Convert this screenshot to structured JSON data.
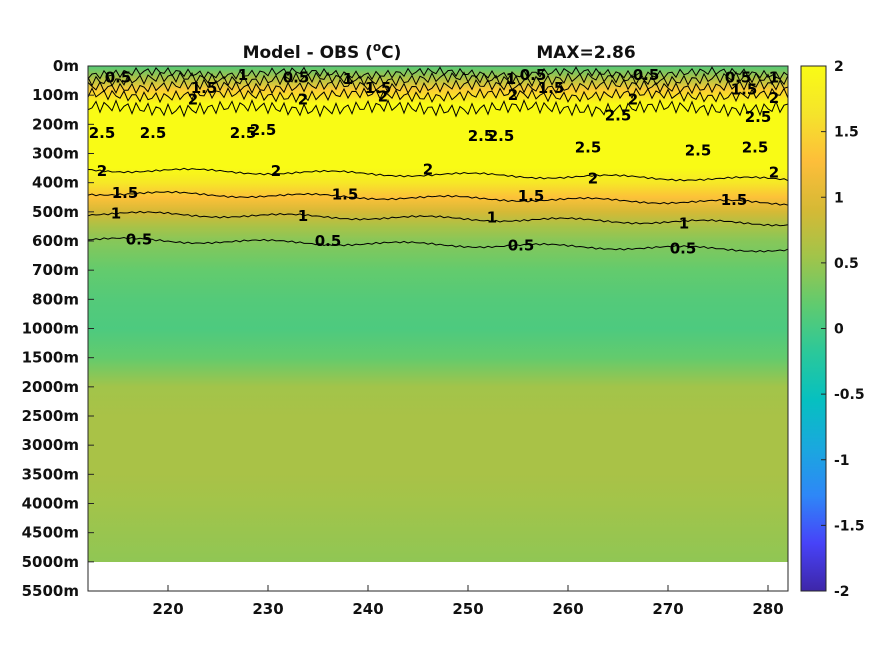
{
  "chart_data": {
    "type": "heatmap",
    "title": "Model - OBS (",
    "title_superscript": "o",
    "title_unit": "C)",
    "annotation": "MAX=2.86",
    "x_ticks": [
      "220",
      "230",
      "240",
      "250",
      "260",
      "270",
      "280"
    ],
    "x_tick_values": [
      220,
      230,
      240,
      250,
      260,
      270,
      280
    ],
    "xlim": [
      212,
      282
    ],
    "y_ticks": [
      "0m",
      "100m",
      "200m",
      "300m",
      "400m",
      "500m",
      "600m",
      "700m",
      "800m",
      "1000m",
      "1500m",
      "2000m",
      "2500m",
      "3000m",
      "3500m",
      "4000m",
      "4500m",
      "5000m",
      "5500m"
    ],
    "data_depth_max": "5000m",
    "colorbar": {
      "ticks": [
        "2",
        "1.5",
        "1",
        "0.5",
        "0",
        "-0.5",
        "-1",
        "-1.5",
        "-2"
      ],
      "values": [
        2,
        1.5,
        1,
        0.5,
        0,
        -0.5,
        -1,
        -1.5,
        -2
      ],
      "clim": [
        -2,
        2
      ],
      "colormap": "parula",
      "stops": [
        "#3e26a8",
        "#4743f8",
        "#2e87f7",
        "#1aa8de",
        "#06c0c0",
        "#2bc89a",
        "#60cb6f",
        "#a1c44a",
        "#d6b935",
        "#fdbe3a",
        "#f5e42b",
        "#f9fb15"
      ]
    },
    "depth_profile": [
      {
        "depth_index": 0,
        "value": 0.1
      },
      {
        "depth_index": 0.4,
        "value": 0.6
      },
      {
        "depth_index": 0.8,
        "value": 1.4
      },
      {
        "depth_index": 1.3,
        "value": 2.3
      },
      {
        "depth_index": 2,
        "value": 2.7
      },
      {
        "depth_index": 2.9,
        "value": 2.6
      },
      {
        "depth_index": 3.5,
        "value": 2.0
      },
      {
        "depth_index": 4,
        "value": 1.7
      },
      {
        "depth_index": 4.5,
        "value": 1.3
      },
      {
        "depth_index": 5,
        "value": 0.9
      },
      {
        "depth_index": 5.5,
        "value": 0.6
      },
      {
        "depth_index": 6,
        "value": 0.4
      },
      {
        "depth_index": 7,
        "value": 0.2
      },
      {
        "depth_index": 8,
        "value": 0.1
      },
      {
        "depth_index": 9,
        "value": 0.05
      },
      {
        "depth_index": 10,
        "value": 0.2
      },
      {
        "depth_index": 11,
        "value": 0.55
      },
      {
        "depth_index": 12,
        "value": 0.6
      },
      {
        "depth_index": 13,
        "value": 0.6
      },
      {
        "depth_index": 14,
        "value": 0.6
      },
      {
        "depth_index": 15,
        "value": 0.55
      },
      {
        "depth_index": 16,
        "value": 0.5
      },
      {
        "depth_index": 17,
        "value": 0.45
      }
    ],
    "contour_labels": [
      {
        "text": "0.5",
        "x": 215,
        "depth_index": 0.4
      },
      {
        "text": "1",
        "x": 227.5,
        "depth_index": 0.3
      },
      {
        "text": "1.5",
        "x": 223.6,
        "depth_index": 0.75
      },
      {
        "text": "2",
        "x": 222.5,
        "depth_index": 1.15
      },
      {
        "text": "0.5",
        "x": 232.8,
        "depth_index": 0.4
      },
      {
        "text": "1",
        "x": 238,
        "depth_index": 0.45
      },
      {
        "text": "1.5",
        "x": 241,
        "depth_index": 0.75
      },
      {
        "text": "2",
        "x": 241.5,
        "depth_index": 1.05
      },
      {
        "text": "2",
        "x": 233.5,
        "depth_index": 1.15
      },
      {
        "text": "1",
        "x": 254.3,
        "depth_index": 0.45
      },
      {
        "text": "0.5",
        "x": 256.5,
        "depth_index": 0.3
      },
      {
        "text": "1.5",
        "x": 258.3,
        "depth_index": 0.75
      },
      {
        "text": "2",
        "x": 254.5,
        "depth_index": 1.0
      },
      {
        "text": "0.5",
        "x": 267.8,
        "depth_index": 0.3
      },
      {
        "text": "2",
        "x": 266.5,
        "depth_index": 1.15
      },
      {
        "text": "0.5",
        "x": 277,
        "depth_index": 0.4
      },
      {
        "text": "1",
        "x": 282,
        "depth_index": 0.4
      },
      {
        "text": "1.5",
        "x": 277.6,
        "depth_index": 0.8
      },
      {
        "text": "2",
        "x": 281,
        "depth_index": 1.1
      },
      {
        "text": "2.5",
        "x": 213.4,
        "depth_index": 2.3
      },
      {
        "text": "2.5",
        "x": 218.5,
        "depth_index": 2.3
      },
      {
        "text": "2.5",
        "x": 227.5,
        "depth_index": 2.3
      },
      {
        "text": "2.5",
        "x": 229.5,
        "depth_index": 2.2
      },
      {
        "text": "2.5",
        "x": 251.3,
        "depth_index": 2.4
      },
      {
        "text": "2.5",
        "x": 253.3,
        "depth_index": 2.4
      },
      {
        "text": "2.5",
        "x": 262,
        "depth_index": 2.8
      },
      {
        "text": "2.5",
        "x": 265,
        "depth_index": 1.7
      },
      {
        "text": "2.5",
        "x": 273,
        "depth_index": 2.9
      },
      {
        "text": "2.5",
        "x": 279,
        "depth_index": 1.75
      },
      {
        "text": "2.5",
        "x": 278.7,
        "depth_index": 2.8
      },
      {
        "text": "2",
        "x": 213.4,
        "depth_index": 3.6
      },
      {
        "text": "2",
        "x": 230.8,
        "depth_index": 3.6
      },
      {
        "text": "2",
        "x": 246,
        "depth_index": 3.55
      },
      {
        "text": "2",
        "x": 262.5,
        "depth_index": 3.85
      },
      {
        "text": "2",
        "x": 281,
        "depth_index": 3.65
      },
      {
        "text": "1.5",
        "x": 215.7,
        "depth_index": 4.35
      },
      {
        "text": "1.5",
        "x": 237.7,
        "depth_index": 4.4
      },
      {
        "text": "1.5",
        "x": 256.3,
        "depth_index": 4.45
      },
      {
        "text": "1.5",
        "x": 276.6,
        "depth_index": 4.6
      },
      {
        "text": "1",
        "x": 214.8,
        "depth_index": 5.05
      },
      {
        "text": "1",
        "x": 233.5,
        "depth_index": 5.15
      },
      {
        "text": "1",
        "x": 252.4,
        "depth_index": 5.2
      },
      {
        "text": "1",
        "x": 271.6,
        "depth_index": 5.4
      },
      {
        "text": "0.5",
        "x": 217.1,
        "depth_index": 5.95
      },
      {
        "text": "0.5",
        "x": 236,
        "depth_index": 6.0
      },
      {
        "text": "0.5",
        "x": 255.3,
        "depth_index": 6.15
      },
      {
        "text": "0.5",
        "x": 271.5,
        "depth_index": 6.25
      }
    ]
  }
}
